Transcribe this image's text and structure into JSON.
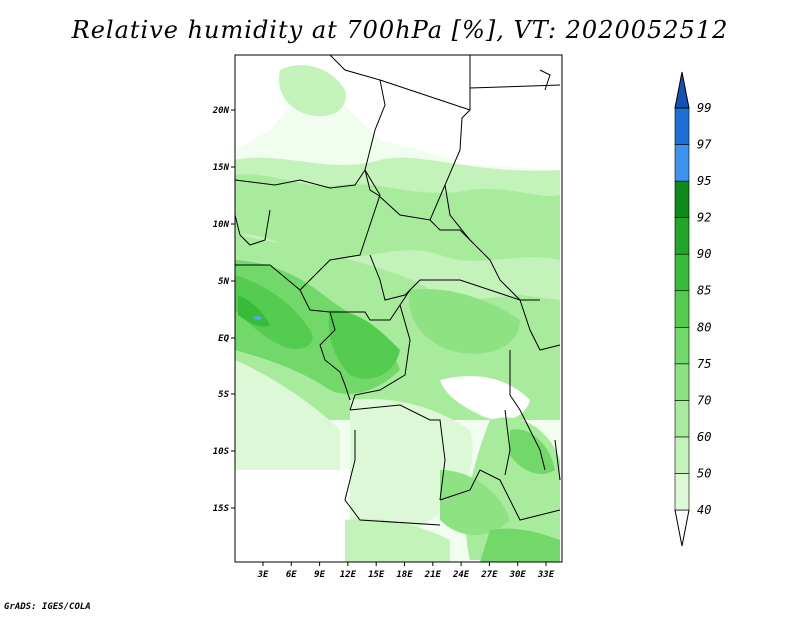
{
  "title": "Relative humidity at 700hPa [%], VT: 2020052512",
  "footer": "GrADS: IGES/COLA",
  "lat_labels": [
    "20N",
    "15N",
    "10N",
    "5N",
    "EQ",
    "5S",
    "10S",
    "15S"
  ],
  "lon_labels": [
    "3E",
    "6E",
    "9E",
    "12E",
    "15E",
    "18E",
    "21E",
    "24E",
    "27E",
    "30E",
    "33E"
  ],
  "colorbar": {
    "levels": [
      "40",
      "50",
      "60",
      "70",
      "75",
      "80",
      "85",
      "90",
      "92",
      "95",
      "97",
      "99"
    ],
    "colors": [
      "#f1fdef",
      "#dcf8d6",
      "#c4f2bb",
      "#a8eb9d",
      "#8ee283",
      "#72d86a",
      "#55cc50",
      "#38bb3a",
      "#23a52a",
      "#0e8a1c",
      "#3d92f0",
      "#1f6fd8",
      "#1652b4"
    ]
  },
  "colors": {
    "land_base": "#c8f0c0",
    "border": "#000000",
    "water": "#5aa6e6"
  }
}
